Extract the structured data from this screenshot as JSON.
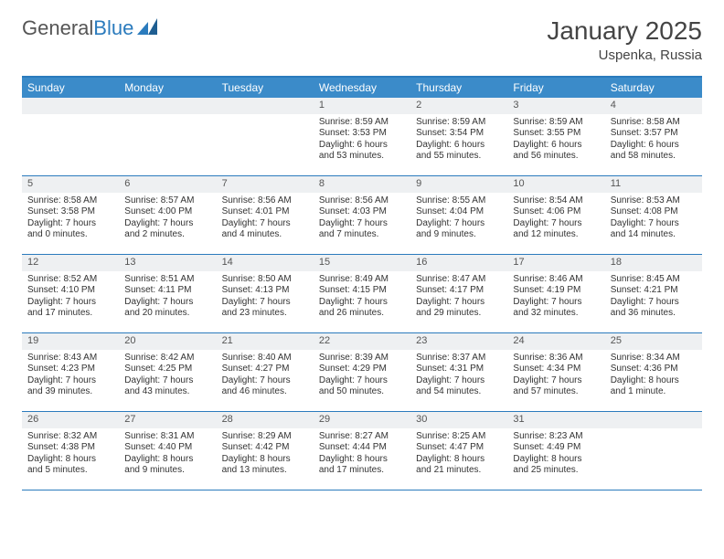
{
  "brand": {
    "text_a": "General",
    "text_b": "Blue",
    "color_a": "#555555",
    "color_b": "#2b7bbd"
  },
  "title": "January 2025",
  "location": "Uspenka, Russia",
  "colors": {
    "header_bg": "#3b8bc9",
    "border": "#2b7bbd",
    "daynum_bg": "#eef0f2",
    "text": "#333333"
  },
  "days_of_week": [
    "Sunday",
    "Monday",
    "Tuesday",
    "Wednesday",
    "Thursday",
    "Friday",
    "Saturday"
  ],
  "leading_blanks": 3,
  "days": [
    {
      "n": 1,
      "sr": "8:59 AM",
      "ss": "3:53 PM",
      "dl": "6 hours and 53 minutes."
    },
    {
      "n": 2,
      "sr": "8:59 AM",
      "ss": "3:54 PM",
      "dl": "6 hours and 55 minutes."
    },
    {
      "n": 3,
      "sr": "8:59 AM",
      "ss": "3:55 PM",
      "dl": "6 hours and 56 minutes."
    },
    {
      "n": 4,
      "sr": "8:58 AM",
      "ss": "3:57 PM",
      "dl": "6 hours and 58 minutes."
    },
    {
      "n": 5,
      "sr": "8:58 AM",
      "ss": "3:58 PM",
      "dl": "7 hours and 0 minutes."
    },
    {
      "n": 6,
      "sr": "8:57 AM",
      "ss": "4:00 PM",
      "dl": "7 hours and 2 minutes."
    },
    {
      "n": 7,
      "sr": "8:56 AM",
      "ss": "4:01 PM",
      "dl": "7 hours and 4 minutes."
    },
    {
      "n": 8,
      "sr": "8:56 AM",
      "ss": "4:03 PM",
      "dl": "7 hours and 7 minutes."
    },
    {
      "n": 9,
      "sr": "8:55 AM",
      "ss": "4:04 PM",
      "dl": "7 hours and 9 minutes."
    },
    {
      "n": 10,
      "sr": "8:54 AM",
      "ss": "4:06 PM",
      "dl": "7 hours and 12 minutes."
    },
    {
      "n": 11,
      "sr": "8:53 AM",
      "ss": "4:08 PM",
      "dl": "7 hours and 14 minutes."
    },
    {
      "n": 12,
      "sr": "8:52 AM",
      "ss": "4:10 PM",
      "dl": "7 hours and 17 minutes."
    },
    {
      "n": 13,
      "sr": "8:51 AM",
      "ss": "4:11 PM",
      "dl": "7 hours and 20 minutes."
    },
    {
      "n": 14,
      "sr": "8:50 AM",
      "ss": "4:13 PM",
      "dl": "7 hours and 23 minutes."
    },
    {
      "n": 15,
      "sr": "8:49 AM",
      "ss": "4:15 PM",
      "dl": "7 hours and 26 minutes."
    },
    {
      "n": 16,
      "sr": "8:47 AM",
      "ss": "4:17 PM",
      "dl": "7 hours and 29 minutes."
    },
    {
      "n": 17,
      "sr": "8:46 AM",
      "ss": "4:19 PM",
      "dl": "7 hours and 32 minutes."
    },
    {
      "n": 18,
      "sr": "8:45 AM",
      "ss": "4:21 PM",
      "dl": "7 hours and 36 minutes."
    },
    {
      "n": 19,
      "sr": "8:43 AM",
      "ss": "4:23 PM",
      "dl": "7 hours and 39 minutes."
    },
    {
      "n": 20,
      "sr": "8:42 AM",
      "ss": "4:25 PM",
      "dl": "7 hours and 43 minutes."
    },
    {
      "n": 21,
      "sr": "8:40 AM",
      "ss": "4:27 PM",
      "dl": "7 hours and 46 minutes."
    },
    {
      "n": 22,
      "sr": "8:39 AM",
      "ss": "4:29 PM",
      "dl": "7 hours and 50 minutes."
    },
    {
      "n": 23,
      "sr": "8:37 AM",
      "ss": "4:31 PM",
      "dl": "7 hours and 54 minutes."
    },
    {
      "n": 24,
      "sr": "8:36 AM",
      "ss": "4:34 PM",
      "dl": "7 hours and 57 minutes."
    },
    {
      "n": 25,
      "sr": "8:34 AM",
      "ss": "4:36 PM",
      "dl": "8 hours and 1 minute."
    },
    {
      "n": 26,
      "sr": "8:32 AM",
      "ss": "4:38 PM",
      "dl": "8 hours and 5 minutes."
    },
    {
      "n": 27,
      "sr": "8:31 AM",
      "ss": "4:40 PM",
      "dl": "8 hours and 9 minutes."
    },
    {
      "n": 28,
      "sr": "8:29 AM",
      "ss": "4:42 PM",
      "dl": "8 hours and 13 minutes."
    },
    {
      "n": 29,
      "sr": "8:27 AM",
      "ss": "4:44 PM",
      "dl": "8 hours and 17 minutes."
    },
    {
      "n": 30,
      "sr": "8:25 AM",
      "ss": "4:47 PM",
      "dl": "8 hours and 21 minutes."
    },
    {
      "n": 31,
      "sr": "8:23 AM",
      "ss": "4:49 PM",
      "dl": "8 hours and 25 minutes."
    }
  ],
  "labels": {
    "sunrise": "Sunrise:",
    "sunset": "Sunset:",
    "daylight": "Daylight:"
  }
}
